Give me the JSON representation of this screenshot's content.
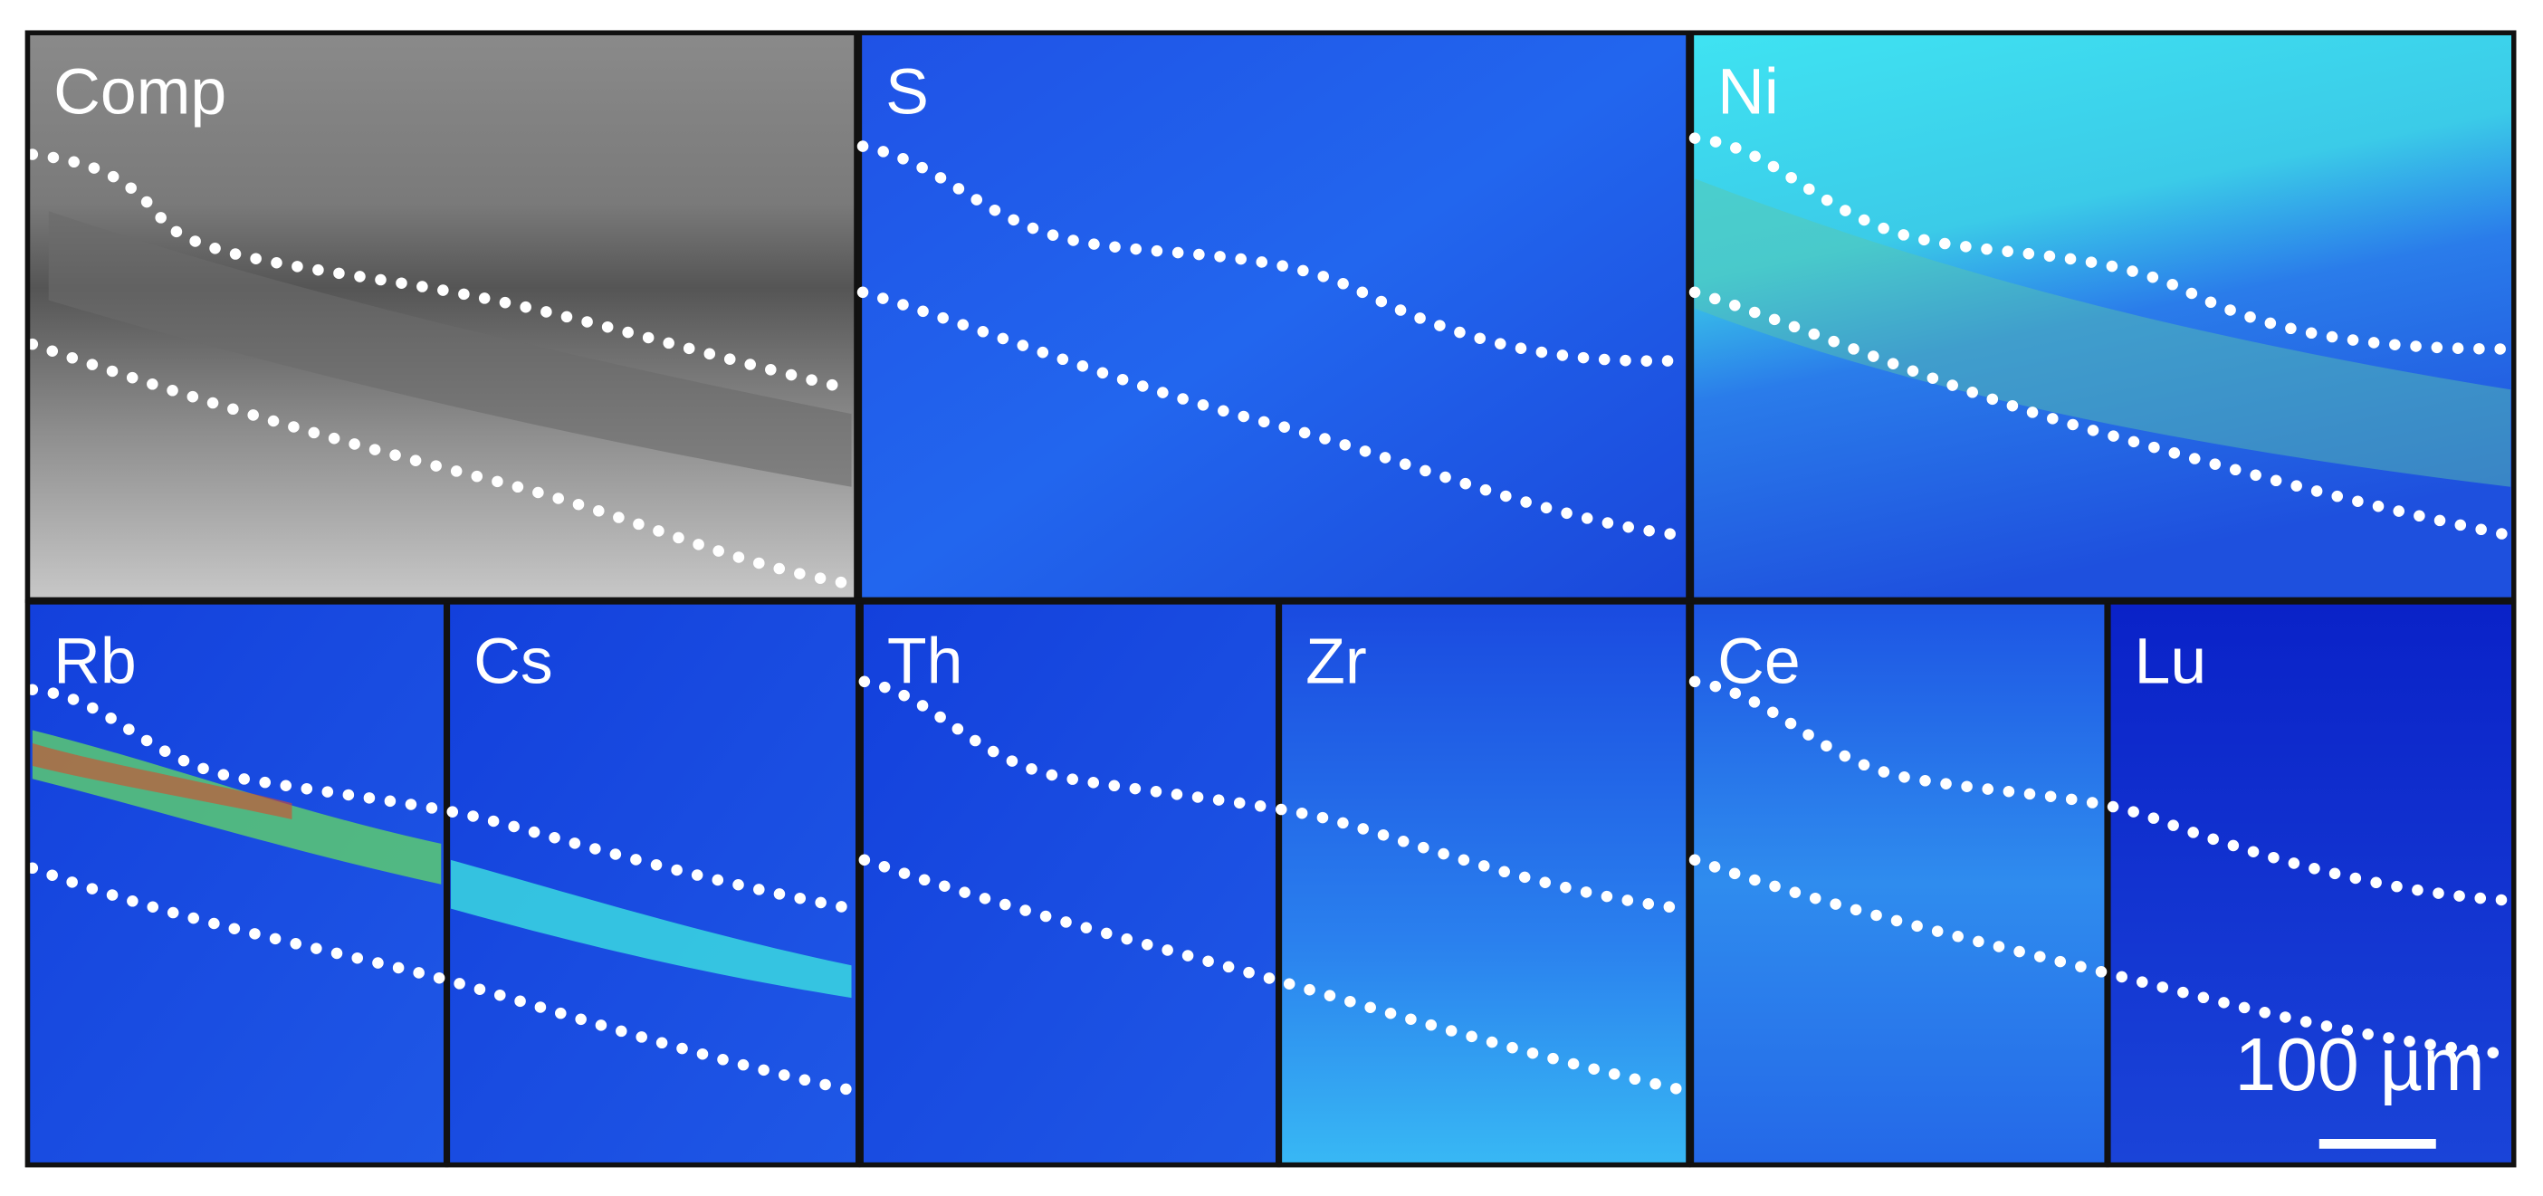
{
  "panels": [
    {
      "label": "Comp"
    },
    {
      "label": "S"
    },
    {
      "label": "Ni"
    },
    {
      "label": "Rb"
    },
    {
      "label": "Cs"
    },
    {
      "label": "Th"
    },
    {
      "label": "Zr"
    },
    {
      "label": "Ce"
    },
    {
      "label": "Lu"
    }
  ],
  "scale_bar": {
    "label": "100 µm"
  }
}
